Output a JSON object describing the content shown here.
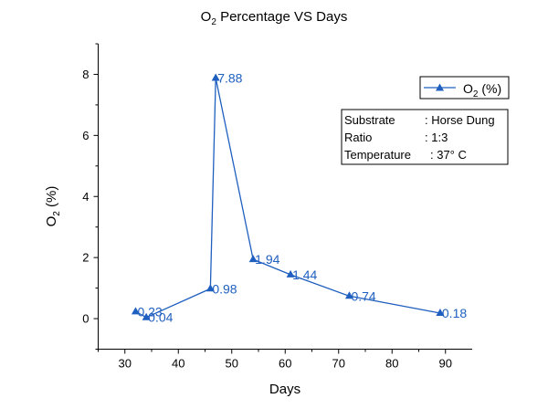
{
  "chart_data": {
    "type": "line",
    "title": {
      "main": "O",
      "sub": "2",
      "rest": " Percentage VS Days"
    },
    "xlabel": "Days",
    "ylabel": {
      "main": "O",
      "sub": "2",
      "rest": " (%)"
    },
    "xlim": [
      25,
      95
    ],
    "ylim": [
      -1,
      9
    ],
    "xticks": [
      "30",
      "40",
      "50",
      "60",
      "70",
      "80",
      "90"
    ],
    "yticks": [
      "0",
      "2",
      "4",
      "6",
      "8"
    ],
    "series": [
      {
        "name": {
          "main": "O",
          "sub": "2",
          "rest": " (%)"
        },
        "color": "#1f5fbf",
        "marker": "triangle",
        "x": [
          32,
          34,
          46,
          47,
          54,
          61,
          72,
          89
        ],
        "y": [
          0.23,
          0.04,
          0.98,
          7.88,
          1.94,
          1.44,
          0.74,
          0.18
        ],
        "labels": [
          "0.23",
          "0.04",
          "0.98",
          "7.88",
          "1.94",
          "1.44",
          "0.74",
          "0.18"
        ]
      }
    ],
    "legend_position": "top-right",
    "grid": false,
    "info_box": {
      "rows": [
        [
          "Substrate",
          ": Horse Dung"
        ],
        [
          "Ratio",
          ": 1:3"
        ],
        [
          "Temperature",
          ": 37° C"
        ]
      ]
    }
  }
}
